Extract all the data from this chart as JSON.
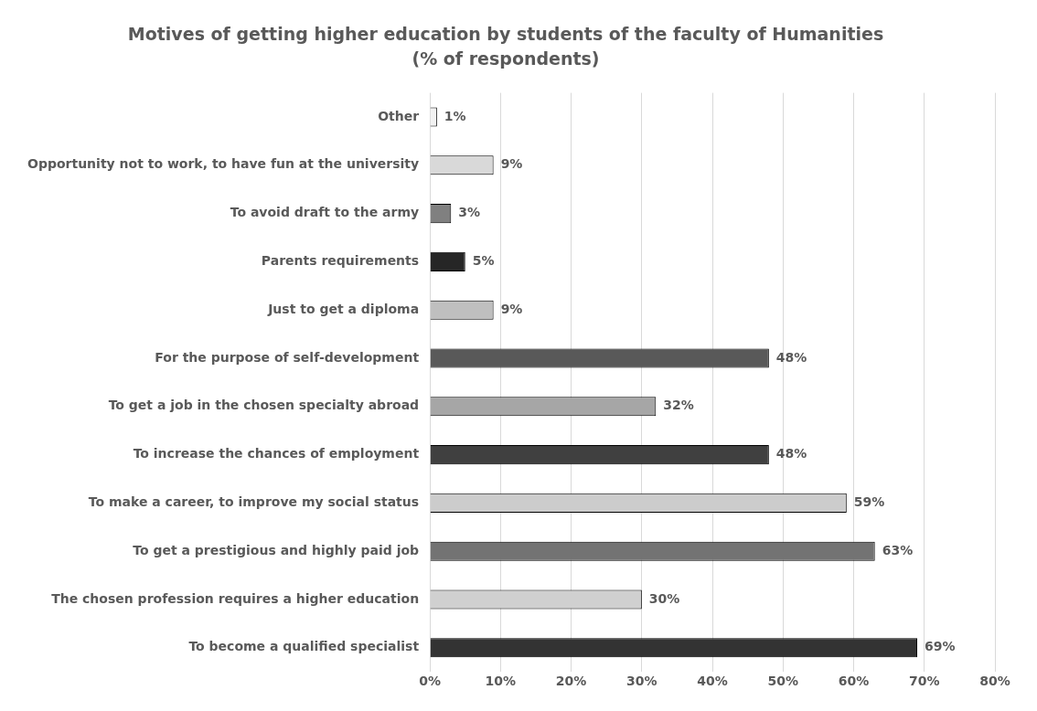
{
  "chart_data": {
    "type": "bar",
    "orientation": "horizontal",
    "title": "Motives of getting higher education by students of the faculty of Humanities",
    "subtitle": "(% of respondents)",
    "categories": [
      "Other",
      "Opportunity not to work, to have fun at the university",
      "To avoid draft to the army",
      "Parents requirements",
      "Just to get a diploma",
      "For the purpose of self-development",
      "To get a job in the chosen specialty abroad",
      "To increase the chances of employment",
      "To make a career, to improve my social status",
      "To get a prestigious and highly paid job",
      "The chosen profession requires a higher education",
      "To become a qualified specialist"
    ],
    "values": [
      1,
      9,
      3,
      5,
      9,
      48,
      32,
      48,
      59,
      63,
      30,
      69
    ],
    "value_labels": [
      "1%",
      "9%",
      "3%",
      "5%",
      "9%",
      "48%",
      "32%",
      "48%",
      "59%",
      "63%",
      "30%",
      "69%"
    ],
    "colors": [
      "#f2f2f2",
      "#d9d9d9",
      "#808080",
      "#262626",
      "#bfbfbf",
      "#595959",
      "#a6a6a6",
      "#404040",
      "#cccccc",
      "#737373",
      "#d0d0d0",
      "#333333"
    ],
    "xlim": [
      0,
      80
    ],
    "xticks": [
      {
        "value": 0,
        "label": "0%"
      },
      {
        "value": 10,
        "label": "10%"
      },
      {
        "value": 20,
        "label": "20%"
      },
      {
        "value": 30,
        "label": "30%"
      },
      {
        "value": 40,
        "label": "40%"
      },
      {
        "value": 50,
        "label": "50%"
      },
      {
        "value": 60,
        "label": "60%"
      },
      {
        "value": 70,
        "label": "70%"
      },
      {
        "value": 80,
        "label": "80%"
      }
    ],
    "grid": "x",
    "legend": false
  }
}
